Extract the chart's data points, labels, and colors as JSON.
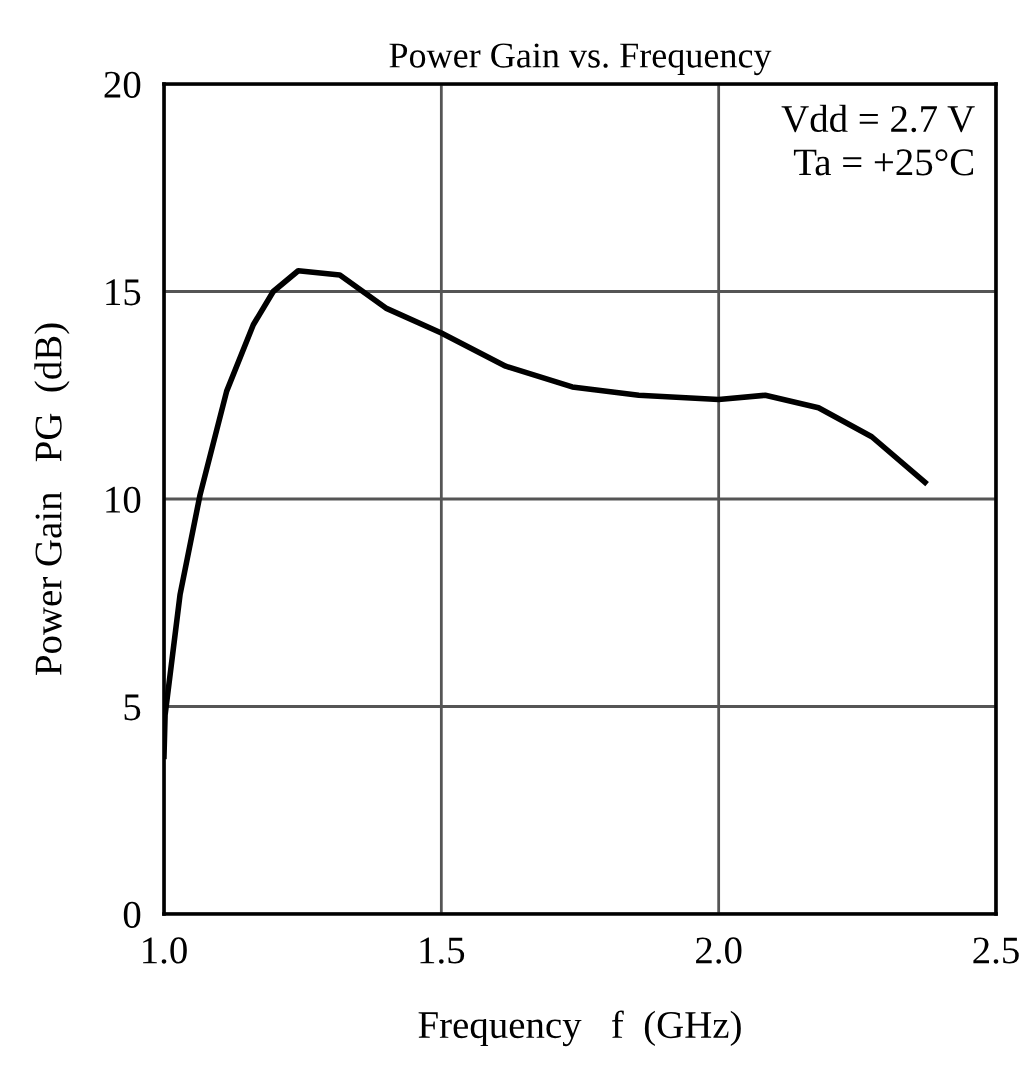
{
  "chart_data": {
    "type": "line",
    "title": "Power Gain vs. Frequency",
    "xlabel": "Frequency   f  (GHz)",
    "ylabel": "Power Gain   PG  (dB)",
    "annotations": [
      "Vdd = 2.7 V\nTa = +25°C"
    ],
    "series": [
      {
        "color": "#000000",
        "x": [
          1.0,
          1.002,
          1.029,
          1.065,
          1.113,
          1.161,
          1.197,
          1.242,
          1.317,
          1.4,
          1.5,
          1.616,
          1.736,
          1.856,
          2.0,
          2.084,
          2.18,
          2.276,
          2.372
        ],
        "values": [
          3.8,
          4.8,
          7.7,
          10.1,
          12.6,
          14.2,
          15.0,
          15.5,
          15.4,
          14.6,
          14.0,
          13.2,
          12.7,
          12.5,
          12.4,
          12.5,
          12.2,
          11.5,
          10.4
        ]
      }
    ],
    "xlim": [
      1.0,
      2.5
    ],
    "xticks": [
      {
        "value": 1.0,
        "label": "1.0"
      },
      {
        "value": 1.5,
        "label": "1.5"
      },
      {
        "value": 2.0,
        "label": "2.0"
      },
      {
        "value": 2.5,
        "label": "2.5"
      }
    ],
    "ylim": [
      0,
      20
    ],
    "yticks": [
      0,
      5,
      10,
      15,
      20
    ],
    "grid": true,
    "marker": "none",
    "line_style": "solid"
  }
}
